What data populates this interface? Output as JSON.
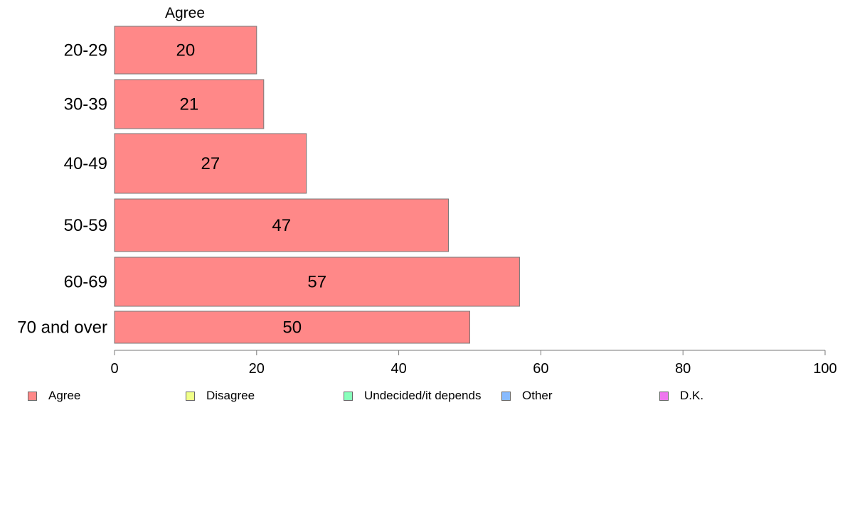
{
  "chart_data": {
    "type": "bar",
    "orientation": "horizontal",
    "panel_title": "Agree",
    "categories": [
      "20-29",
      "30-39",
      "40-49",
      "50-59",
      "60-69",
      "70 and over"
    ],
    "series": [
      {
        "name": "Agree",
        "color": "#ff8888",
        "values": [
          20,
          21,
          27,
          47,
          57,
          50
        ],
        "data_labels": [
          "20",
          "21",
          "27",
          "47",
          "57",
          "50"
        ]
      }
    ],
    "xlim": [
      0,
      100
    ],
    "xticks": [
      0,
      20,
      40,
      60,
      80,
      100
    ],
    "xtick_labels": [
      "0",
      "20",
      "40",
      "60",
      "80",
      "100"
    ],
    "grid": false,
    "legend_position": "bottom",
    "legend": [
      {
        "label": "Agree",
        "color": "#ff8888"
      },
      {
        "label": "Disagree",
        "color": "#f0ff88"
      },
      {
        "label": "Undecided/it depends",
        "color": "#88ffbb"
      },
      {
        "label": "Other",
        "color": "#88bbff"
      },
      {
        "label": "D.K.",
        "color": "#ee77ee"
      }
    ]
  }
}
